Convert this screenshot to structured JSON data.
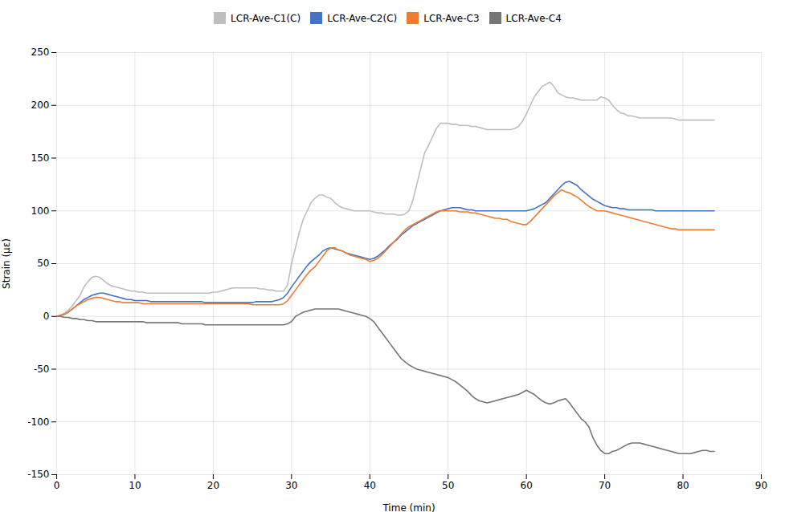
{
  "chart_data": {
    "type": "line",
    "xlabel": "Time (min)",
    "ylabel": "Strain (με)",
    "xlim": [
      0,
      90
    ],
    "ylim": [
      -150,
      250
    ],
    "xticks": [
      0,
      10,
      20,
      30,
      40,
      50,
      60,
      70,
      80,
      90
    ],
    "yticks": [
      -150,
      -100,
      -50,
      0,
      50,
      100,
      150,
      200,
      250
    ],
    "grid": true,
    "legend": "top",
    "x": [
      0,
      0.5,
      1,
      1.5,
      2,
      2.5,
      3,
      3.5,
      4,
      4.5,
      5,
      5.5,
      6,
      6.5,
      7,
      7.5,
      8,
      8.5,
      9,
      9.5,
      10,
      10.5,
      11,
      11.5,
      12,
      12.5,
      13,
      13.5,
      14,
      14.5,
      15,
      15.5,
      16,
      16.5,
      17,
      17.5,
      18,
      18.5,
      19,
      19.5,
      20,
      20.5,
      21,
      21.5,
      22,
      22.5,
      23,
      23.5,
      24,
      24.5,
      25,
      25.5,
      26,
      26.5,
      27,
      27.5,
      28,
      28.5,
      29,
      29.5,
      30,
      30.5,
      31,
      31.5,
      32,
      32.5,
      33,
      33.5,
      34,
      34.5,
      35,
      35.5,
      36,
      36.5,
      37,
      37.5,
      38,
      38.5,
      39,
      39.5,
      40,
      40.5,
      41,
      41.5,
      42,
      42.5,
      43,
      43.5,
      44,
      44.5,
      45,
      45.5,
      46,
      46.5,
      47,
      47.5,
      48,
      48.5,
      49,
      49.5,
      50,
      50.5,
      51,
      51.5,
      52,
      52.5,
      53,
      53.5,
      54,
      54.5,
      55,
      55.5,
      56,
      56.5,
      57,
      57.5,
      58,
      58.5,
      59,
      59.5,
      60,
      60.5,
      61,
      61.5,
      62,
      62.5,
      63,
      63.5,
      64,
      64.5,
      65,
      65.5,
      66,
      66.5,
      67,
      67.5,
      68,
      68.5,
      69,
      69.5,
      70,
      70.5,
      71,
      71.5,
      72,
      72.5,
      73,
      73.5,
      74,
      74.5,
      75,
      75.5,
      76,
      76.5,
      77,
      77.5,
      78,
      78.5,
      79,
      79.5,
      80,
      80.5,
      81,
      81.5,
      82,
      82.5,
      83,
      83.5,
      84
    ],
    "series": [
      {
        "name": "LCR-Ave-C1(C)",
        "color": "#bebebe",
        "values": [
          0,
          1,
          3,
          6,
          10,
          15,
          20,
          28,
          33,
          37,
          38,
          37,
          34,
          31,
          29,
          28,
          27,
          26,
          25,
          24,
          24,
          23,
          23,
          22,
          22,
          22,
          22,
          22,
          22,
          22,
          22,
          22,
          22,
          22,
          22,
          22,
          22,
          22,
          22,
          22,
          23,
          23,
          24,
          25,
          26,
          27,
          27,
          27,
          27,
          27,
          27,
          27,
          26,
          26,
          25,
          25,
          24,
          24,
          24,
          30,
          50,
          65,
          80,
          92,
          100,
          108,
          112,
          115,
          115,
          113,
          112,
          108,
          105,
          103,
          102,
          101,
          100,
          100,
          100,
          100,
          100,
          99,
          98,
          98,
          97,
          97,
          97,
          96,
          96,
          97,
          100,
          110,
          125,
          140,
          155,
          162,
          170,
          178,
          183,
          183,
          183,
          182,
          182,
          181,
          181,
          181,
          180,
          180,
          179,
          178,
          177,
          177,
          177,
          177,
          177,
          177,
          177,
          178,
          180,
          185,
          192,
          200,
          208,
          213,
          218,
          220,
          222,
          218,
          212,
          210,
          208,
          207,
          207,
          206,
          205,
          205,
          205,
          205,
          205,
          208,
          207,
          205,
          200,
          196,
          193,
          192,
          190,
          190,
          189,
          188,
          188,
          188,
          188,
          188,
          188,
          188,
          188,
          188,
          187,
          186,
          186,
          186,
          186,
          186,
          186,
          186,
          186,
          186,
          186
        ]
      },
      {
        "name": "LCR-Ave-C2(C)",
        "color": "#4472c4",
        "values": [
          0,
          1,
          2,
          4,
          7,
          10,
          13,
          16,
          18,
          20,
          21,
          22,
          22,
          21,
          20,
          19,
          18,
          17,
          16,
          16,
          15,
          15,
          15,
          15,
          14,
          14,
          14,
          14,
          14,
          14,
          14,
          14,
          14,
          14,
          14,
          14,
          14,
          14,
          13,
          13,
          13,
          13,
          13,
          13,
          13,
          13,
          13,
          13,
          13,
          13,
          13,
          14,
          14,
          14,
          14,
          14,
          15,
          16,
          18,
          22,
          28,
          33,
          38,
          43,
          48,
          52,
          55,
          58,
          62,
          64,
          65,
          64,
          63,
          62,
          60,
          59,
          58,
          57,
          56,
          55,
          54,
          55,
          57,
          60,
          63,
          67,
          70,
          73,
          77,
          80,
          83,
          86,
          88,
          90,
          92,
          94,
          96,
          98,
          100,
          101,
          102,
          103,
          103,
          103,
          102,
          101,
          101,
          100,
          100,
          100,
          100,
          100,
          100,
          100,
          100,
          100,
          100,
          100,
          100,
          100,
          100,
          101,
          102,
          104,
          106,
          108,
          112,
          116,
          120,
          124,
          127,
          128,
          126,
          124,
          120,
          117,
          114,
          111,
          109,
          107,
          105,
          104,
          103,
          103,
          102,
          102,
          101,
          101,
          101,
          101,
          101,
          101,
          101,
          100,
          100,
          100,
          100,
          100,
          100,
          100,
          100,
          100,
          100,
          100,
          100,
          100,
          100,
          100,
          100
        ]
      },
      {
        "name": "LCR-Ave-C3",
        "color": "#ed7d31",
        "values": [
          0,
          1,
          2,
          4,
          7,
          10,
          12,
          14,
          16,
          17,
          18,
          18,
          17,
          16,
          15,
          14,
          14,
          13,
          13,
          13,
          13,
          13,
          12,
          12,
          12,
          12,
          12,
          12,
          12,
          12,
          12,
          12,
          12,
          12,
          12,
          12,
          12,
          12,
          12,
          12,
          12,
          12,
          12,
          12,
          12,
          12,
          12,
          12,
          12,
          12,
          11,
          11,
          11,
          11,
          11,
          11,
          11,
          11,
          12,
          15,
          20,
          25,
          30,
          35,
          40,
          44,
          47,
          52,
          57,
          62,
          65,
          65,
          63,
          62,
          60,
          58,
          57,
          56,
          55,
          54,
          52,
          53,
          55,
          58,
          62,
          66,
          70,
          74,
          78,
          82,
          85,
          87,
          89,
          91,
          93,
          95,
          97,
          99,
          100,
          100,
          100,
          100,
          100,
          99,
          99,
          99,
          98,
          98,
          97,
          96,
          95,
          94,
          93,
          93,
          92,
          92,
          90,
          89,
          88,
          87,
          87,
          90,
          94,
          98,
          102,
          106,
          110,
          114,
          117,
          120,
          118,
          117,
          115,
          113,
          110,
          107,
          104,
          102,
          100,
          100,
          100,
          99,
          98,
          97,
          96,
          95,
          94,
          93,
          92,
          91,
          90,
          89,
          88,
          87,
          86,
          85,
          84,
          83,
          83,
          82,
          82,
          82,
          82,
          82,
          82,
          82,
          82,
          82,
          82
        ]
      },
      {
        "name": "LCR-Ave-C4",
        "color": "#767676",
        "values": [
          0,
          0,
          -1,
          -1,
          -2,
          -2,
          -3,
          -3,
          -4,
          -4,
          -5,
          -5,
          -5,
          -5,
          -5,
          -5,
          -5,
          -5,
          -5,
          -5,
          -5,
          -5,
          -5,
          -6,
          -6,
          -6,
          -6,
          -6,
          -6,
          -6,
          -6,
          -6,
          -7,
          -7,
          -7,
          -7,
          -7,
          -7,
          -8,
          -8,
          -8,
          -8,
          -8,
          -8,
          -8,
          -8,
          -8,
          -8,
          -8,
          -8,
          -8,
          -8,
          -8,
          -8,
          -8,
          -8,
          -8,
          -8,
          -8,
          -7,
          -5,
          0,
          2,
          4,
          5,
          6,
          7,
          7,
          7,
          7,
          7,
          7,
          7,
          6,
          5,
          4,
          3,
          2,
          1,
          0,
          -2,
          -5,
          -10,
          -15,
          -20,
          -25,
          -30,
          -35,
          -40,
          -43,
          -46,
          -48,
          -50,
          -51,
          -52,
          -53,
          -54,
          -55,
          -56,
          -57,
          -58,
          -60,
          -62,
          -65,
          -68,
          -71,
          -75,
          -78,
          -80,
          -81,
          -82,
          -81,
          -80,
          -79,
          -78,
          -77,
          -76,
          -75,
          -74,
          -72,
          -70,
          -72,
          -74,
          -77,
          -80,
          -82,
          -83,
          -82,
          -80,
          -79,
          -78,
          -82,
          -87,
          -92,
          -97,
          -100,
          -105,
          -115,
          -122,
          -127,
          -130,
          -130,
          -128,
          -127,
          -125,
          -123,
          -121,
          -120,
          -120,
          -120,
          -121,
          -122,
          -123,
          -124,
          -125,
          -126,
          -127,
          -128,
          -129,
          -130,
          -130,
          -130,
          -130,
          -129,
          -128,
          -127,
          -127,
          -128,
          -128
        ]
      }
    ]
  }
}
